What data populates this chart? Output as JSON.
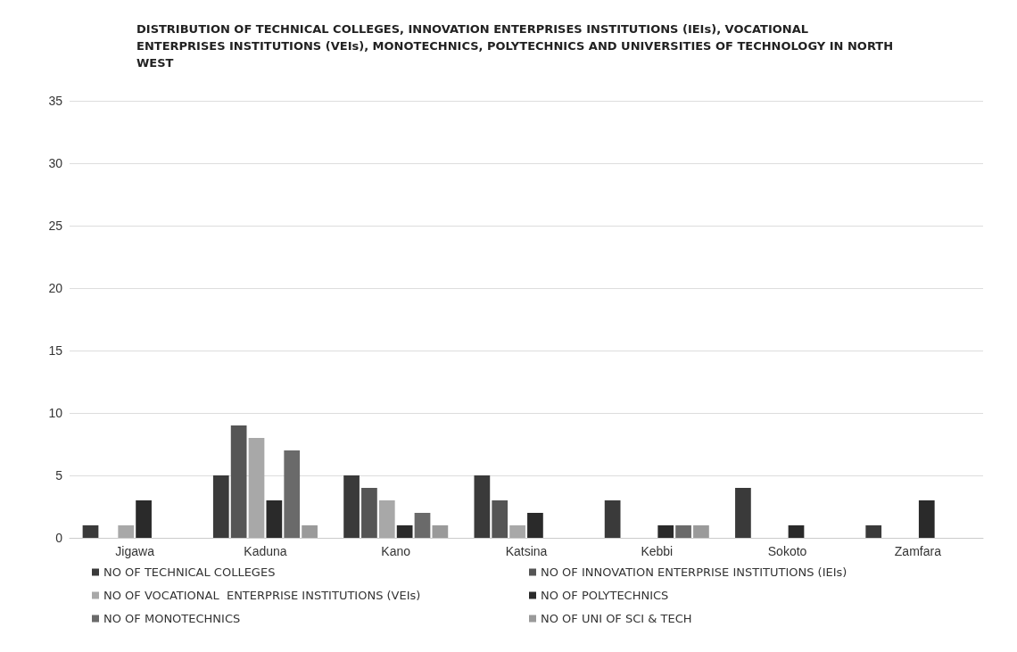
{
  "chart_data": {
    "type": "bar",
    "title": "DISTRIBUTION OF TECHNICAL COLLEGES, INNOVATION ENTERPRISES INSTITUTIONS (IEIs), VOCATIONAL ENTERPRISES INSTITUTIONS (VEIs), MONOTECHNICS, POLYTECHNICS AND UNIVERSITIES OF TECHNOLOGY IN NORTH WEST",
    "categories": [
      "Jigawa",
      "Kaduna",
      "Kano",
      "Katsina",
      "Kebbi",
      "Sokoto",
      "Zamfara"
    ],
    "series": [
      {
        "name": "NO OF TECHNICAL COLLEGES",
        "color": "#3a3a3a",
        "values": [
          1,
          5,
          5,
          5,
          3,
          4,
          1
        ]
      },
      {
        "name": "NO OF INNOVATION ENTERPRISE INSTITUTIONS (IEIs)",
        "color": "#555555",
        "values": [
          0,
          9,
          4,
          3,
          0,
          0,
          0
        ]
      },
      {
        "name": "NO OF VOCATIONAL  ENTERPRISE INSTITUTIONS (VEIs)",
        "color": "#a8a8a8",
        "values": [
          1,
          8,
          3,
          1,
          0,
          0,
          0
        ]
      },
      {
        "name": "NO OF POLYTECHNICS",
        "color": "#2a2a2a",
        "values": [
          3,
          3,
          1,
          2,
          1,
          1,
          3
        ]
      },
      {
        "name": "NO OF MONOTECHNICS",
        "color": "#6a6a6a",
        "values": [
          0,
          7,
          2,
          0,
          1,
          0,
          0
        ]
      },
      {
        "name": "NO OF UNI OF SCI & TECH",
        "color": "#9a9a9a",
        "values": [
          0,
          1,
          1,
          0,
          1,
          0,
          0
        ]
      }
    ],
    "ylim": [
      0,
      35
    ],
    "yticks": [
      0,
      5,
      10,
      15,
      20,
      25,
      30,
      35
    ],
    "grid": "y",
    "legend": "bottom"
  }
}
